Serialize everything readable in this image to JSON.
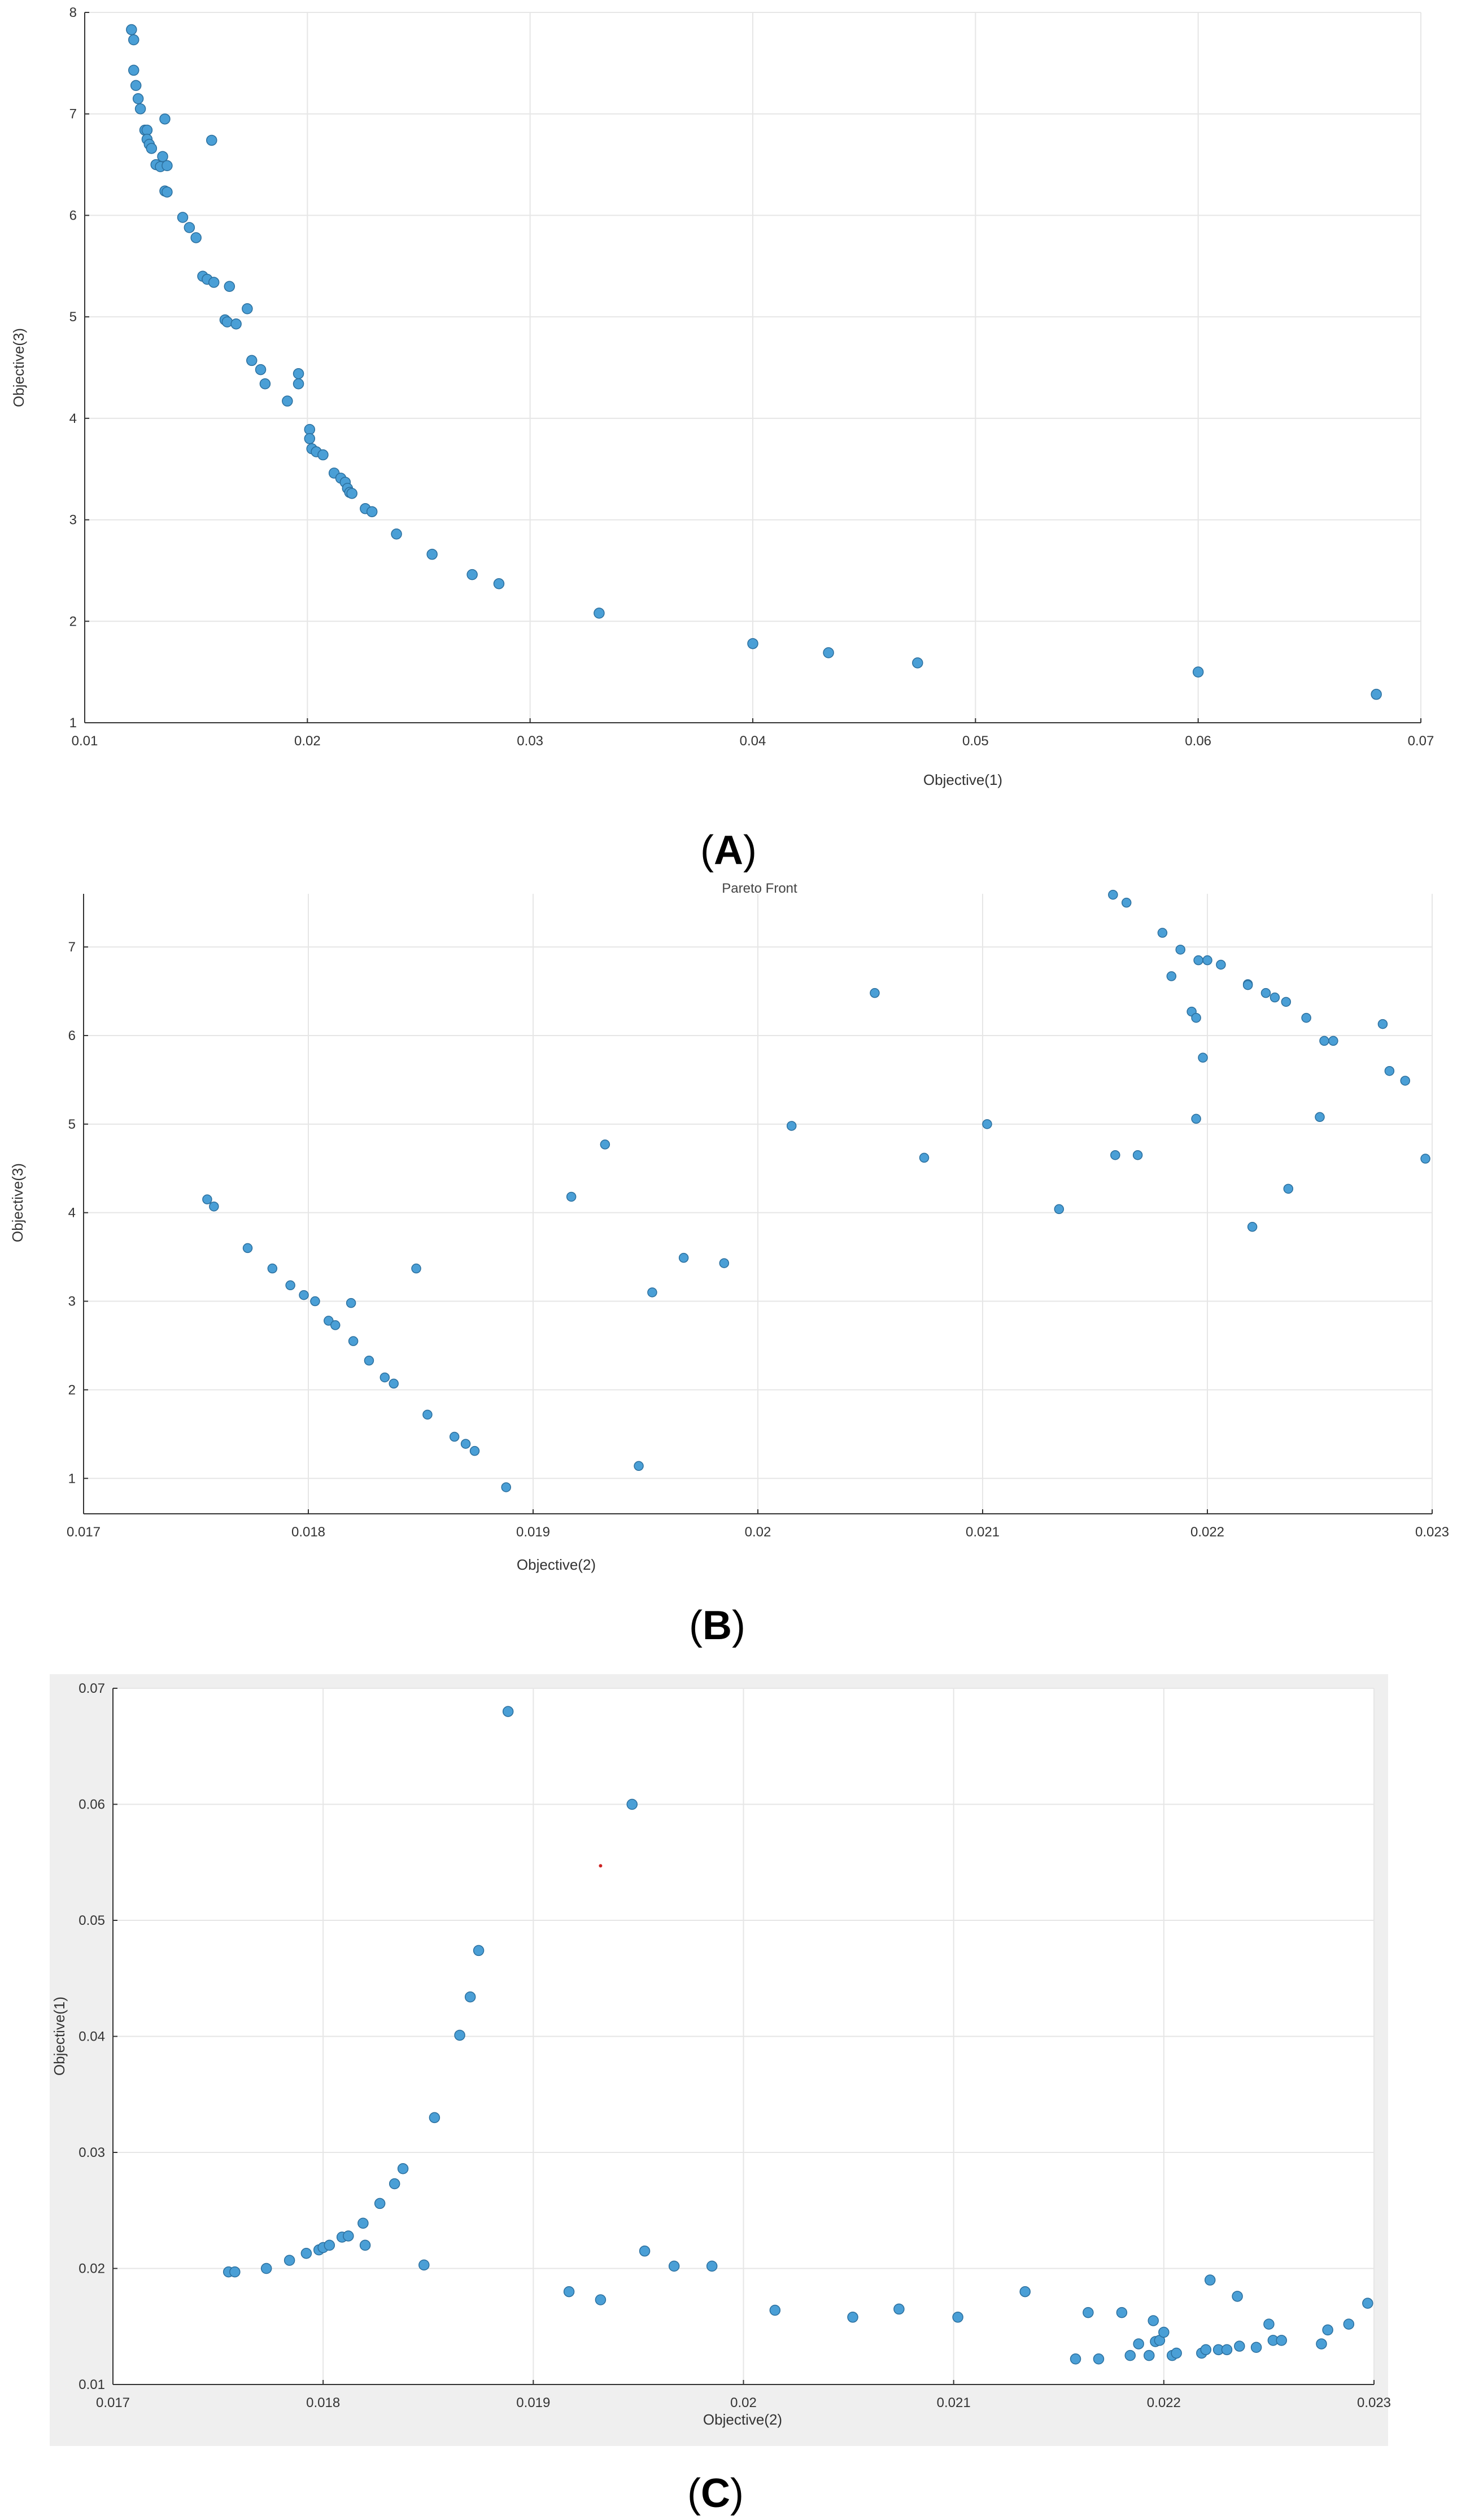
{
  "figure": {
    "captions": [
      {
        "open": "(",
        "letter": "A",
        "close": ")"
      },
      {
        "open": "(",
        "letter": "B",
        "close": ")"
      },
      {
        "open": "(",
        "letter": "C",
        "close": ")"
      }
    ]
  },
  "colors": {
    "point": "#4a9fd6",
    "point_stroke": "#2b6f9e",
    "grid": "#e6e6e6",
    "axis": "#333333",
    "marker_red": "#cc2222",
    "panel_bg": "#efefef"
  },
  "chart_data": [
    {
      "type": "scatter",
      "title": "",
      "xlabel": "Objective(1)",
      "ylabel": "Objective(3)",
      "xlim": [
        0.01,
        0.07
      ],
      "ylim": [
        1,
        8
      ],
      "xticks": [
        "0.01",
        "0.02",
        "0.03",
        "0.04",
        "0.05",
        "0.06",
        "0.07"
      ],
      "yticks": [
        "1",
        "2",
        "3",
        "4",
        "5",
        "6",
        "7",
        "8"
      ],
      "grid": true,
      "x": [
        0.0121,
        0.0122,
        0.0122,
        0.0123,
        0.0124,
        0.0125,
        0.0127,
        0.0128,
        0.0128,
        0.0129,
        0.013,
        0.0132,
        0.0134,
        0.0136,
        0.0135,
        0.0137,
        0.0136,
        0.0137,
        0.0144,
        0.0147,
        0.015,
        0.0153,
        0.0155,
        0.0158,
        0.0157,
        0.0163,
        0.0164,
        0.0165,
        0.0168,
        0.0173,
        0.0175,
        0.0179,
        0.0181,
        0.0191,
        0.0196,
        0.0196,
        0.0201,
        0.0201,
        0.0202,
        0.0204,
        0.0207,
        0.0212,
        0.0215,
        0.0217,
        0.0218,
        0.0219,
        0.022,
        0.0226,
        0.0229,
        0.024,
        0.0256,
        0.0274,
        0.0286,
        0.0331,
        0.04,
        0.0434,
        0.0474,
        0.06,
        0.068
      ],
      "y": [
        7.83,
        7.73,
        7.43,
        7.28,
        7.15,
        7.05,
        6.84,
        6.84,
        6.75,
        6.7,
        6.66,
        6.5,
        6.48,
        6.95,
        6.58,
        6.49,
        6.24,
        6.23,
        5.98,
        5.88,
        5.78,
        5.4,
        5.37,
        5.34,
        6.74,
        4.97,
        4.95,
        5.3,
        4.93,
        5.08,
        4.57,
        4.48,
        4.34,
        4.17,
        4.44,
        4.34,
        3.89,
        3.8,
        3.7,
        3.67,
        3.64,
        3.46,
        3.41,
        3.37,
        3.31,
        3.27,
        3.26,
        3.11,
        3.08,
        2.86,
        2.66,
        2.46,
        2.37,
        2.08,
        1.78,
        1.69,
        1.59,
        1.5,
        1.28
      ]
    },
    {
      "type": "scatter",
      "title": "Pareto Front",
      "xlabel": "Objective(2)",
      "ylabel": "Objective(3)",
      "xlim": [
        0.017,
        0.023
      ],
      "ylim": [
        0.6,
        7.6
      ],
      "xticks": [
        "0.017",
        "0.018",
        "0.019",
        "0.02",
        "0.021",
        "0.022",
        "0.023"
      ],
      "yticks": [
        "1",
        "2",
        "3",
        "4",
        "5",
        "6",
        "7"
      ],
      "grid": true,
      "x": [
        0.01755,
        0.01758,
        0.01773,
        0.01784,
        0.01792,
        0.01798,
        0.01803,
        0.01809,
        0.01812,
        0.01819,
        0.0182,
        0.01827,
        0.01834,
        0.01838,
        0.01848,
        0.01853,
        0.01865,
        0.0187,
        0.01874,
        0.01888,
        0.01917,
        0.01932,
        0.01947,
        0.01953,
        0.01967,
        0.01985,
        0.02015,
        0.02052,
        0.02074,
        0.02102,
        0.02134,
        0.02158,
        0.02159,
        0.02164,
        0.02169,
        0.0218,
        0.02184,
        0.02188,
        0.02193,
        0.02195,
        0.02195,
        0.02196,
        0.02198,
        0.022,
        0.02206,
        0.02218,
        0.0222,
        0.02218,
        0.02226,
        0.0223,
        0.02235,
        0.02236,
        0.02244,
        0.0225,
        0.02252,
        0.02256,
        0.02278,
        0.02281,
        0.02288,
        0.02297
      ],
      "y": [
        4.15,
        4.07,
        3.6,
        3.37,
        3.18,
        3.07,
        3.0,
        2.78,
        2.73,
        2.98,
        2.55,
        2.33,
        2.14,
        2.07,
        3.37,
        1.72,
        1.47,
        1.39,
        1.31,
        0.9,
        4.18,
        4.77,
        1.14,
        3.1,
        3.49,
        3.43,
        4.98,
        6.48,
        4.62,
        5.0,
        4.04,
        7.59,
        4.65,
        7.5,
        4.65,
        7.16,
        6.67,
        6.97,
        6.27,
        5.06,
        6.2,
        6.85,
        5.75,
        6.85,
        6.8,
        6.58,
        3.84,
        6.57,
        6.48,
        6.43,
        6.38,
        4.27,
        6.2,
        5.08,
        5.94,
        5.94,
        6.13,
        5.6,
        5.49,
        4.61
      ]
    },
    {
      "type": "scatter",
      "title": "",
      "xlabel": "Objective(2)",
      "ylabel": "Objective(1)",
      "xlim": [
        0.017,
        0.023
      ],
      "ylim": [
        0.01,
        0.07
      ],
      "xticks": [
        "0.017",
        "0.018",
        "0.019",
        "0.02",
        "0.021",
        "0.022",
        "0.023"
      ],
      "yticks": [
        "0.01",
        "0.02",
        "0.03",
        "0.04",
        "0.05",
        "0.06",
        "0.07"
      ],
      "grid": true,
      "x": [
        0.01755,
        0.01758,
        0.01773,
        0.01784,
        0.01792,
        0.01798,
        0.018,
        0.01803,
        0.01809,
        0.01812,
        0.01819,
        0.0182,
        0.01827,
        0.01834,
        0.01838,
        0.01848,
        0.01853,
        0.01865,
        0.0187,
        0.01874,
        0.01888,
        0.01917,
        0.01932,
        0.01947,
        0.01953,
        0.01967,
        0.01985,
        0.02015,
        0.02052,
        0.02074,
        0.02102,
        0.02134,
        0.02158,
        0.02164,
        0.02169,
        0.0218,
        0.02184,
        0.02188,
        0.02193,
        0.02195,
        0.02196,
        0.02198,
        0.022,
        0.02204,
        0.02206,
        0.02218,
        0.0222,
        0.02222,
        0.02226,
        0.0223,
        0.02235,
        0.02236,
        0.02244,
        0.0225,
        0.02252,
        0.02256,
        0.02275,
        0.02278,
        0.02288,
        0.02297
      ],
      "y": [
        0.0197,
        0.0197,
        0.02,
        0.0207,
        0.0213,
        0.0216,
        0.0218,
        0.022,
        0.0227,
        0.0228,
        0.0239,
        0.022,
        0.0256,
        0.0273,
        0.0286,
        0.0203,
        0.033,
        0.0401,
        0.0434,
        0.0474,
        0.068,
        0.018,
        0.0173,
        0.06,
        0.0215,
        0.0202,
        0.0202,
        0.0164,
        0.0158,
        0.0165,
        0.0158,
        0.018,
        0.0122,
        0.0162,
        0.0122,
        0.0162,
        0.0125,
        0.0135,
        0.0125,
        0.0155,
        0.0137,
        0.0138,
        0.0145,
        0.0125,
        0.0127,
        0.0127,
        0.013,
        0.019,
        0.013,
        0.013,
        0.0176,
        0.0133,
        0.0132,
        0.0152,
        0.0138,
        0.0138,
        0.0135,
        0.0147,
        0.0152,
        0.017
      ],
      "marker": {
        "x": 0.01932,
        "y": 0.0547
      }
    }
  ]
}
